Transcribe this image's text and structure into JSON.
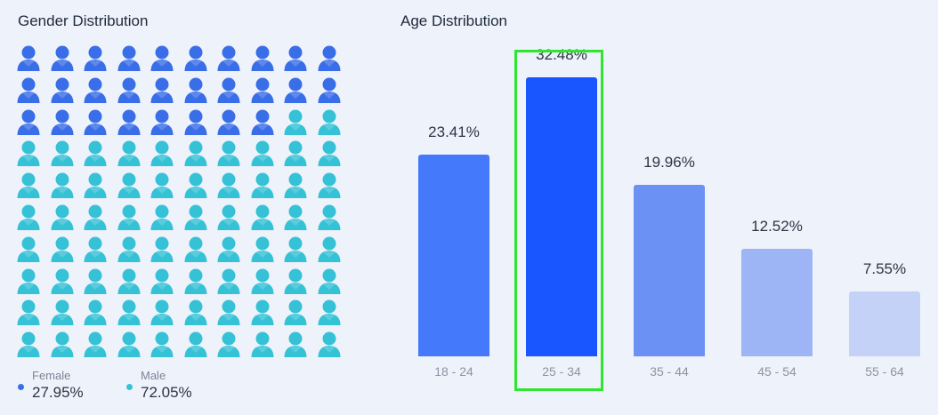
{
  "gender_panel": {
    "title": "Gender Distribution",
    "icon_name": "person-icon",
    "grid_total": 100,
    "female_icon_count": 28,
    "legend": [
      {
        "label": "Female",
        "value": "27.95%",
        "color": "#3a6ee8"
      },
      {
        "label": "Male",
        "value": "72.05%",
        "color": "#35c2d6"
      }
    ]
  },
  "age_panel": {
    "title": "Age Distribution"
  },
  "highlight_color": "#2ee62e",
  "chart_data": [
    {
      "type": "waffle",
      "title": "Gender Distribution",
      "categories": [
        "Female",
        "Male"
      ],
      "values": [
        27.95,
        72.05
      ],
      "units": "%"
    },
    {
      "type": "bar",
      "title": "Age Distribution",
      "categories": [
        "18 - 24",
        "25 - 34",
        "35 - 44",
        "45 - 54",
        "55 - 64"
      ],
      "values": [
        23.41,
        32.48,
        19.96,
        12.52,
        7.55
      ],
      "labels": [
        "23.41%",
        "32.48%",
        "19.96%",
        "12.52%",
        "7.55%"
      ],
      "colors": [
        "#4579fc",
        "#1a56ff",
        "#6b91f5",
        "#9db4f5",
        "#c5d2f7"
      ],
      "highlighted_category": "25 - 34",
      "ylim": [
        0,
        35
      ],
      "xlabel": "",
      "ylabel": ""
    }
  ]
}
